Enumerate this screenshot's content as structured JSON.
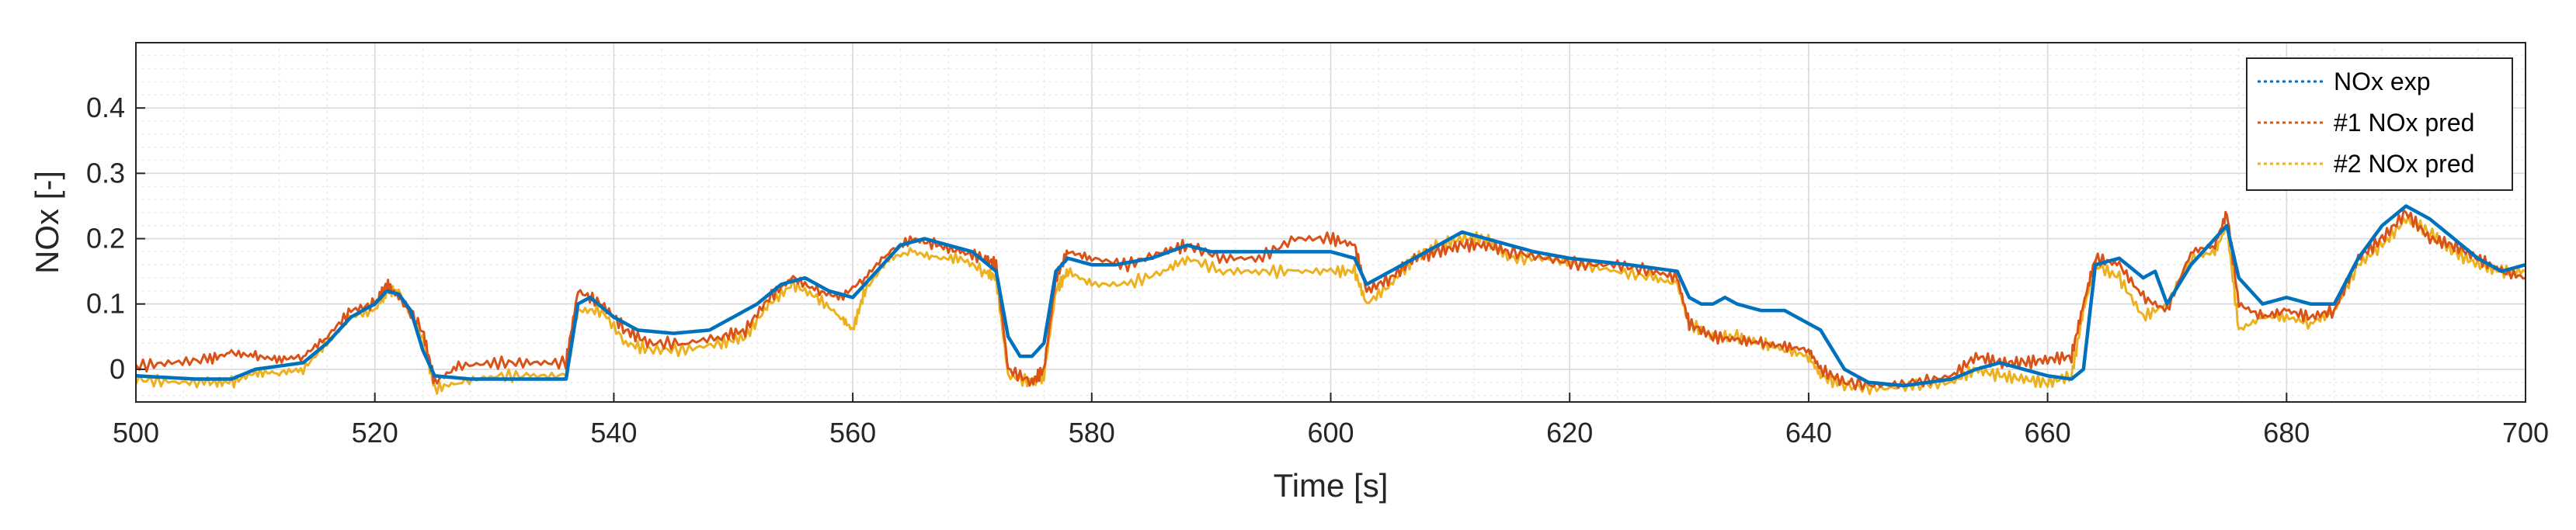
{
  "chart_data": {
    "type": "line",
    "title": "",
    "xlabel": "Time [s]",
    "ylabel": "NOx [-]",
    "xlim": [
      500,
      700
    ],
    "ylim": [
      -0.05,
      0.5
    ],
    "xticks": [
      500,
      520,
      540,
      560,
      580,
      600,
      620,
      640,
      660,
      680,
      700
    ],
    "yticks": [
      0,
      0.1,
      0.2,
      0.3,
      0.4
    ],
    "ytick_labels": [
      "0",
      "0.1",
      "0.2",
      "0.3",
      "0.4"
    ],
    "grid": true,
    "minor_grid": true,
    "legend_position": "top-right",
    "series": [
      {
        "name": "NOx exp",
        "color": "#0072BD",
        "points": [
          [
            500,
            -0.01
          ],
          [
            505,
            -0.015
          ],
          [
            508,
            -0.015
          ],
          [
            510,
            0.0
          ],
          [
            514,
            0.01
          ],
          [
            516,
            0.04
          ],
          [
            518,
            0.08
          ],
          [
            520,
            0.1
          ],
          [
            521,
            0.12
          ],
          [
            522,
            0.115
          ],
          [
            523,
            0.09
          ],
          [
            524,
            0.03
          ],
          [
            525,
            -0.01
          ],
          [
            528,
            -0.015
          ],
          [
            532,
            -0.015
          ],
          [
            536,
            -0.015
          ],
          [
            537,
            0.1
          ],
          [
            538,
            0.11
          ],
          [
            540,
            0.08
          ],
          [
            542,
            0.06
          ],
          [
            545,
            0.055
          ],
          [
            548,
            0.06
          ],
          [
            550,
            0.08
          ],
          [
            552,
            0.1
          ],
          [
            554,
            0.13
          ],
          [
            556,
            0.14
          ],
          [
            558,
            0.12
          ],
          [
            560,
            0.11
          ],
          [
            562,
            0.15
          ],
          [
            564,
            0.19
          ],
          [
            566,
            0.2
          ],
          [
            568,
            0.19
          ],
          [
            570,
            0.18
          ],
          [
            572,
            0.15
          ],
          [
            573,
            0.05
          ],
          [
            574,
            0.02
          ],
          [
            575,
            0.02
          ],
          [
            576,
            0.04
          ],
          [
            577,
            0.15
          ],
          [
            578,
            0.17
          ],
          [
            580,
            0.16
          ],
          [
            582,
            0.16
          ],
          [
            585,
            0.17
          ],
          [
            588,
            0.19
          ],
          [
            590,
            0.18
          ],
          [
            594,
            0.18
          ],
          [
            598,
            0.18
          ],
          [
            600,
            0.18
          ],
          [
            602,
            0.17
          ],
          [
            603,
            0.13
          ],
          [
            605,
            0.15
          ],
          [
            607,
            0.17
          ],
          [
            609,
            0.19
          ],
          [
            611,
            0.21
          ],
          [
            613,
            0.2
          ],
          [
            615,
            0.19
          ],
          [
            617,
            0.18
          ],
          [
            620,
            0.17
          ],
          [
            625,
            0.16
          ],
          [
            629,
            0.15
          ],
          [
            630,
            0.11
          ],
          [
            631,
            0.1
          ],
          [
            632,
            0.1
          ],
          [
            633,
            0.11
          ],
          [
            634,
            0.1
          ],
          [
            636,
            0.09
          ],
          [
            638,
            0.09
          ],
          [
            640,
            0.07
          ],
          [
            641,
            0.06
          ],
          [
            643,
            0.0
          ],
          [
            645,
            -0.02
          ],
          [
            648,
            -0.025
          ],
          [
            650,
            -0.02
          ],
          [
            652,
            -0.015
          ],
          [
            654,
            0.0
          ],
          [
            656,
            0.01
          ],
          [
            658,
            0.0
          ],
          [
            660,
            -0.01
          ],
          [
            662,
            -0.015
          ],
          [
            663,
            0.0
          ],
          [
            664,
            0.16
          ],
          [
            666,
            0.17
          ],
          [
            668,
            0.14
          ],
          [
            669,
            0.15
          ],
          [
            670,
            0.1
          ],
          [
            672,
            0.16
          ],
          [
            674,
            0.2
          ],
          [
            675,
            0.22
          ],
          [
            676,
            0.14
          ],
          [
            678,
            0.1
          ],
          [
            680,
            0.11
          ],
          [
            682,
            0.1
          ],
          [
            684,
            0.1
          ],
          [
            686,
            0.17
          ],
          [
            688,
            0.22
          ],
          [
            690,
            0.25
          ],
          [
            692,
            0.23
          ],
          [
            694,
            0.2
          ],
          [
            696,
            0.17
          ],
          [
            698,
            0.15
          ],
          [
            700,
            0.16
          ]
        ]
      },
      {
        "name": "#1 NOx pred",
        "color": "#D95319",
        "points": [
          [
            500,
            0.005
          ],
          [
            503,
            0.01
          ],
          [
            506,
            0.015
          ],
          [
            508,
            0.025
          ],
          [
            510,
            0.02
          ],
          [
            512,
            0.015
          ],
          [
            514,
            0.02
          ],
          [
            516,
            0.05
          ],
          [
            518,
            0.09
          ],
          [
            520,
            0.1
          ],
          [
            521,
            0.13
          ],
          [
            522,
            0.11
          ],
          [
            524,
            0.06
          ],
          [
            525,
            -0.02
          ],
          [
            527,
            0.005
          ],
          [
            530,
            0.01
          ],
          [
            533,
            0.01
          ],
          [
            536,
            0.01
          ],
          [
            537,
            0.12
          ],
          [
            539,
            0.1
          ],
          [
            541,
            0.06
          ],
          [
            543,
            0.04
          ],
          [
            546,
            0.04
          ],
          [
            549,
            0.05
          ],
          [
            551,
            0.06
          ],
          [
            553,
            0.11
          ],
          [
            555,
            0.14
          ],
          [
            557,
            0.12
          ],
          [
            559,
            0.11
          ],
          [
            561,
            0.14
          ],
          [
            563,
            0.18
          ],
          [
            565,
            0.2
          ],
          [
            567,
            0.19
          ],
          [
            569,
            0.18
          ],
          [
            571,
            0.17
          ],
          [
            572,
            0.16
          ],
          [
            573,
            0.0
          ],
          [
            575,
            -0.02
          ],
          [
            576,
            0.0
          ],
          [
            577,
            0.14
          ],
          [
            578,
            0.18
          ],
          [
            580,
            0.17
          ],
          [
            583,
            0.16
          ],
          [
            586,
            0.18
          ],
          [
            588,
            0.19
          ],
          [
            591,
            0.17
          ],
          [
            594,
            0.17
          ],
          [
            597,
            0.2
          ],
          [
            600,
            0.2
          ],
          [
            602,
            0.19
          ],
          [
            603,
            0.12
          ],
          [
            605,
            0.14
          ],
          [
            607,
            0.17
          ],
          [
            609,
            0.18
          ],
          [
            611,
            0.19
          ],
          [
            613,
            0.19
          ],
          [
            615,
            0.18
          ],
          [
            618,
            0.17
          ],
          [
            621,
            0.16
          ],
          [
            624,
            0.16
          ],
          [
            627,
            0.15
          ],
          [
            629,
            0.14
          ],
          [
            630,
            0.07
          ],
          [
            632,
            0.05
          ],
          [
            634,
            0.045
          ],
          [
            636,
            0.04
          ],
          [
            638,
            0.035
          ],
          [
            640,
            0.03
          ],
          [
            641,
            0.0
          ],
          [
            643,
            -0.02
          ],
          [
            646,
            -0.025
          ],
          [
            649,
            -0.02
          ],
          [
            652,
            -0.01
          ],
          [
            654,
            0.02
          ],
          [
            656,
            0.01
          ],
          [
            658,
            0.01
          ],
          [
            660,
            0.015
          ],
          [
            662,
            0.02
          ],
          [
            663,
            0.1
          ],
          [
            664,
            0.17
          ],
          [
            666,
            0.16
          ],
          [
            668,
            0.11
          ],
          [
            670,
            0.09
          ],
          [
            672,
            0.18
          ],
          [
            674,
            0.19
          ],
          [
            675,
            0.24
          ],
          [
            676,
            0.1
          ],
          [
            678,
            0.08
          ],
          [
            680,
            0.09
          ],
          [
            682,
            0.08
          ],
          [
            684,
            0.09
          ],
          [
            686,
            0.17
          ],
          [
            688,
            0.2
          ],
          [
            690,
            0.24
          ],
          [
            692,
            0.2
          ],
          [
            694,
            0.19
          ],
          [
            696,
            0.17
          ],
          [
            698,
            0.15
          ],
          [
            700,
            0.14
          ]
        ]
      },
      {
        "name": "#2 NOx pred",
        "color": "#EDB120",
        "points": [
          [
            500,
            -0.015
          ],
          [
            503,
            -0.02
          ],
          [
            506,
            -0.02
          ],
          [
            508,
            -0.02
          ],
          [
            510,
            -0.005
          ],
          [
            512,
            -0.005
          ],
          [
            514,
            0.0
          ],
          [
            516,
            0.04
          ],
          [
            518,
            0.08
          ],
          [
            520,
            0.09
          ],
          [
            521,
            0.12
          ],
          [
            522,
            0.12
          ],
          [
            524,
            0.05
          ],
          [
            525,
            -0.03
          ],
          [
            527,
            -0.02
          ],
          [
            530,
            -0.01
          ],
          [
            533,
            -0.01
          ],
          [
            536,
            -0.01
          ],
          [
            537,
            0.09
          ],
          [
            539,
            0.09
          ],
          [
            541,
            0.04
          ],
          [
            543,
            0.03
          ],
          [
            546,
            0.03
          ],
          [
            549,
            0.04
          ],
          [
            551,
            0.05
          ],
          [
            553,
            0.1
          ],
          [
            555,
            0.13
          ],
          [
            557,
            0.11
          ],
          [
            559,
            0.08
          ],
          [
            560,
            0.06
          ],
          [
            561,
            0.12
          ],
          [
            563,
            0.17
          ],
          [
            565,
            0.18
          ],
          [
            567,
            0.17
          ],
          [
            569,
            0.17
          ],
          [
            571,
            0.15
          ],
          [
            572,
            0.14
          ],
          [
            573,
            -0.01
          ],
          [
            575,
            -0.02
          ],
          [
            576,
            -0.01
          ],
          [
            577,
            0.12
          ],
          [
            578,
            0.15
          ],
          [
            580,
            0.13
          ],
          [
            583,
            0.13
          ],
          [
            586,
            0.15
          ],
          [
            588,
            0.17
          ],
          [
            591,
            0.15
          ],
          [
            594,
            0.15
          ],
          [
            597,
            0.15
          ],
          [
            600,
            0.15
          ],
          [
            602,
            0.15
          ],
          [
            603,
            0.1
          ],
          [
            605,
            0.13
          ],
          [
            607,
            0.17
          ],
          [
            609,
            0.19
          ],
          [
            611,
            0.2
          ],
          [
            613,
            0.2
          ],
          [
            615,
            0.17
          ],
          [
            618,
            0.17
          ],
          [
            621,
            0.16
          ],
          [
            624,
            0.15
          ],
          [
            627,
            0.14
          ],
          [
            629,
            0.13
          ],
          [
            630,
            0.07
          ],
          [
            632,
            0.05
          ],
          [
            634,
            0.05
          ],
          [
            636,
            0.04
          ],
          [
            638,
            0.03
          ],
          [
            640,
            0.02
          ],
          [
            641,
            -0.01
          ],
          [
            643,
            -0.025
          ],
          [
            646,
            -0.03
          ],
          [
            649,
            -0.025
          ],
          [
            652,
            -0.02
          ],
          [
            654,
            0.0
          ],
          [
            656,
            -0.01
          ],
          [
            658,
            -0.015
          ],
          [
            660,
            -0.02
          ],
          [
            662,
            -0.01
          ],
          [
            663,
            0.09
          ],
          [
            664,
            0.16
          ],
          [
            666,
            0.14
          ],
          [
            668,
            0.08
          ],
          [
            670,
            0.1
          ],
          [
            672,
            0.17
          ],
          [
            674,
            0.18
          ],
          [
            675,
            0.22
          ],
          [
            676,
            0.06
          ],
          [
            678,
            0.08
          ],
          [
            680,
            0.08
          ],
          [
            682,
            0.07
          ],
          [
            684,
            0.09
          ],
          [
            686,
            0.16
          ],
          [
            688,
            0.19
          ],
          [
            690,
            0.23
          ],
          [
            692,
            0.21
          ],
          [
            694,
            0.18
          ],
          [
            696,
            0.16
          ],
          [
            698,
            0.15
          ],
          [
            700,
            0.15
          ]
        ]
      }
    ]
  }
}
